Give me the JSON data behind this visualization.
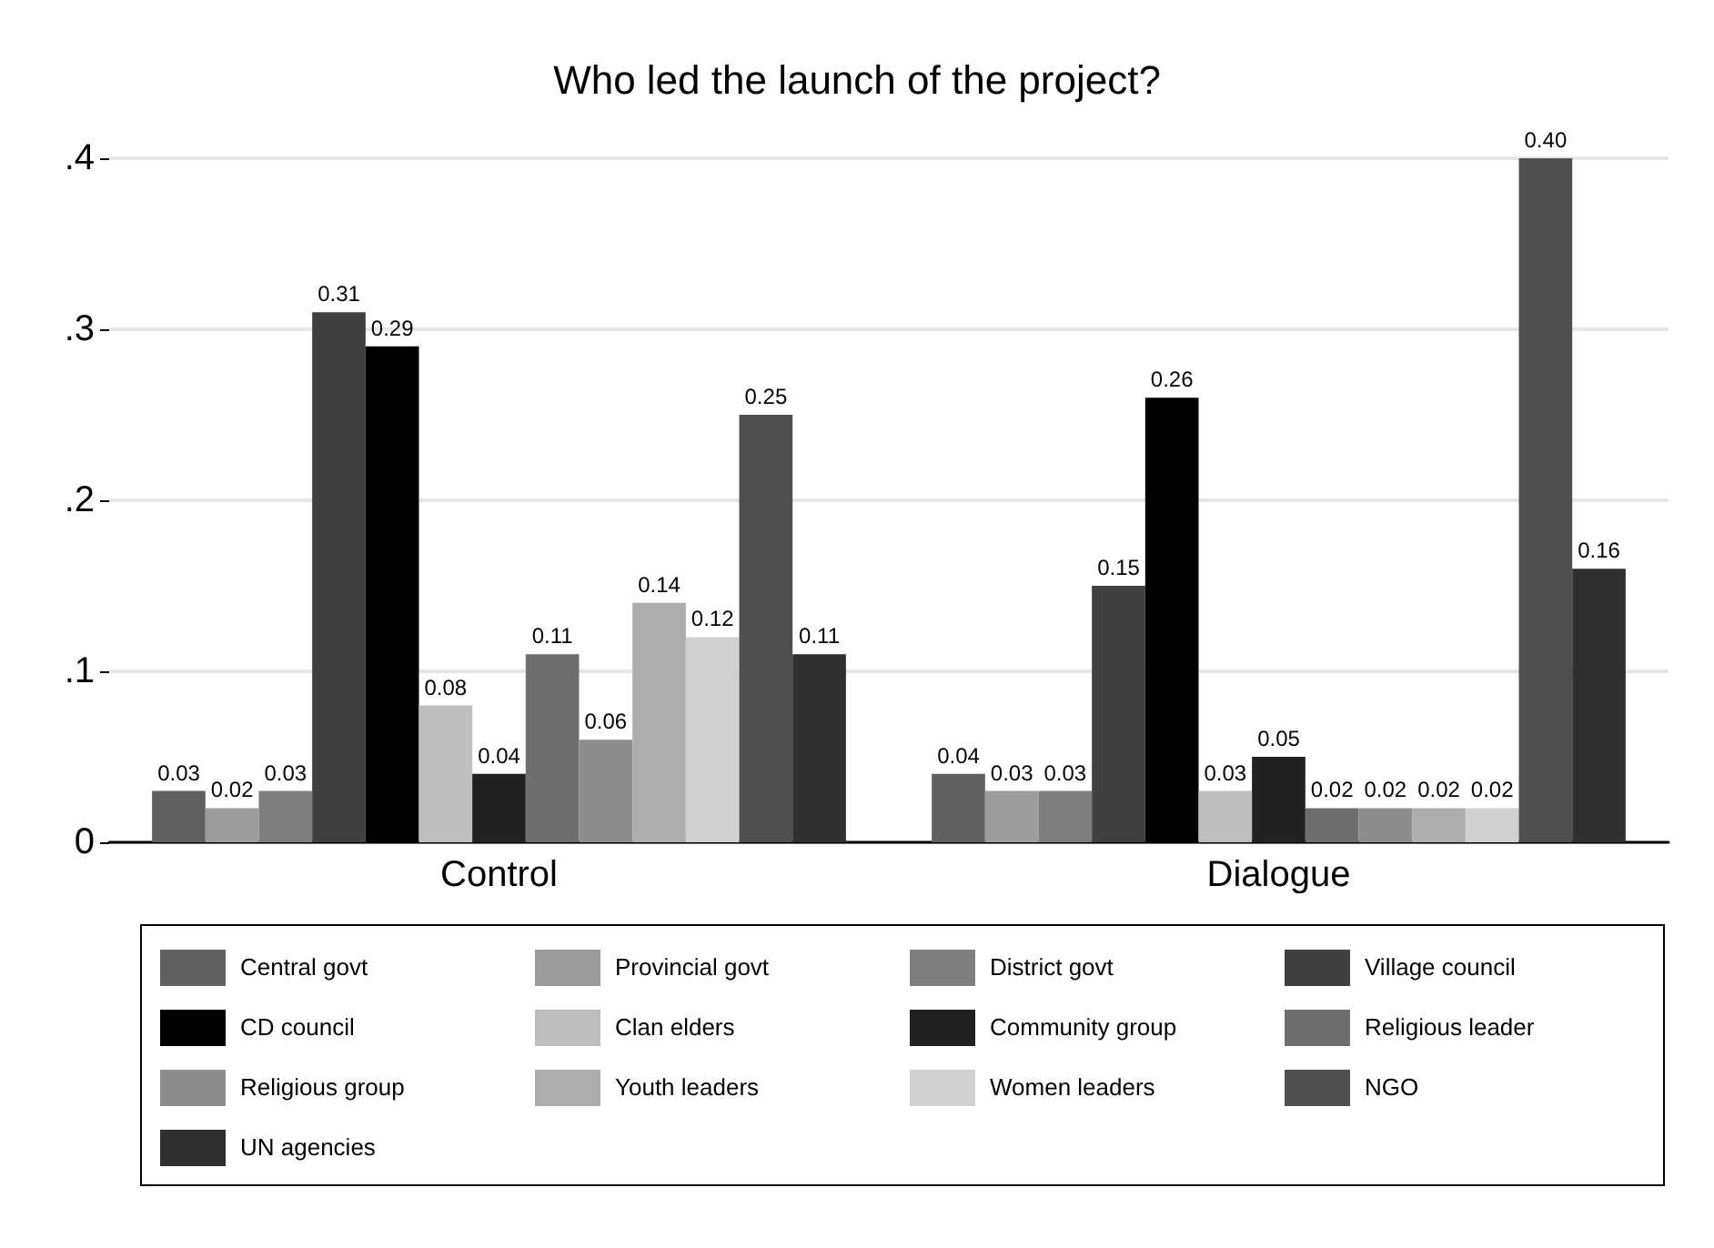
{
  "chart_data": {
    "type": "bar",
    "title": "Who led the launch of the project?",
    "categories": [
      "Control",
      "Dialogue"
    ],
    "series": [
      {
        "name": "Central govt",
        "color": "#616161",
        "values": [
          0.03,
          0.04
        ],
        "value_labels": [
          "0.03",
          "0.04"
        ]
      },
      {
        "name": "Provincial govt",
        "color": "#9c9c9c",
        "values": [
          0.02,
          0.03
        ],
        "value_labels": [
          "0.02",
          "0.03"
        ]
      },
      {
        "name": "District govt",
        "color": "#7f7f7f",
        "values": [
          0.03,
          0.03
        ],
        "value_labels": [
          "0.03",
          "0.03"
        ]
      },
      {
        "name": "Village council",
        "color": "#404040",
        "values": [
          0.31,
          0.15
        ],
        "value_labels": [
          "0.31",
          "0.15"
        ]
      },
      {
        "name": "CD council",
        "color": "#000000",
        "values": [
          0.29,
          0.26
        ],
        "value_labels": [
          "0.29",
          "0.26"
        ]
      },
      {
        "name": "Clan elders",
        "color": "#bebebe",
        "values": [
          0.08,
          0.03
        ],
        "value_labels": [
          "0.08",
          "0.03"
        ]
      },
      {
        "name": "Community group",
        "color": "#212121",
        "values": [
          0.04,
          0.05
        ],
        "value_labels": [
          "0.04",
          "0.05"
        ]
      },
      {
        "name": "Religious leader",
        "color": "#6e6e6e",
        "values": [
          0.11,
          0.02
        ],
        "value_labels": [
          "0.11",
          "0.02"
        ]
      },
      {
        "name": "Religious group",
        "color": "#8d8d8d",
        "values": [
          0.06,
          0.02
        ],
        "value_labels": [
          "0.06",
          "0.02"
        ]
      },
      {
        "name": "Youth leaders",
        "color": "#adadad",
        "values": [
          0.14,
          0.02
        ],
        "value_labels": [
          "0.14",
          "0.02"
        ]
      },
      {
        "name": "Women leaders",
        "color": "#d0d0d0",
        "values": [
          0.12,
          0.02
        ],
        "value_labels": [
          "0.12",
          "0.02"
        ]
      },
      {
        "name": "NGO",
        "color": "#4f4f4f",
        "values": [
          0.25,
          0.4
        ],
        "value_labels": [
          "0.25",
          "0.40"
        ]
      },
      {
        "name": "UN agencies",
        "color": "#303030",
        "values": [
          0.11,
          0.16
        ],
        "value_labels": [
          "0.11",
          "0.16"
        ]
      }
    ],
    "ylim": [
      0,
      0.4
    ],
    "yticks": [
      {
        "value": 0,
        "label": "0"
      },
      {
        "value": 0.1,
        "label": ".1"
      },
      {
        "value": 0.2,
        "label": ".2"
      },
      {
        "value": 0.3,
        "label": ".3"
      },
      {
        "value": 0.4,
        "label": ".4"
      }
    ],
    "grid": "y",
    "legend": "bottom"
  }
}
